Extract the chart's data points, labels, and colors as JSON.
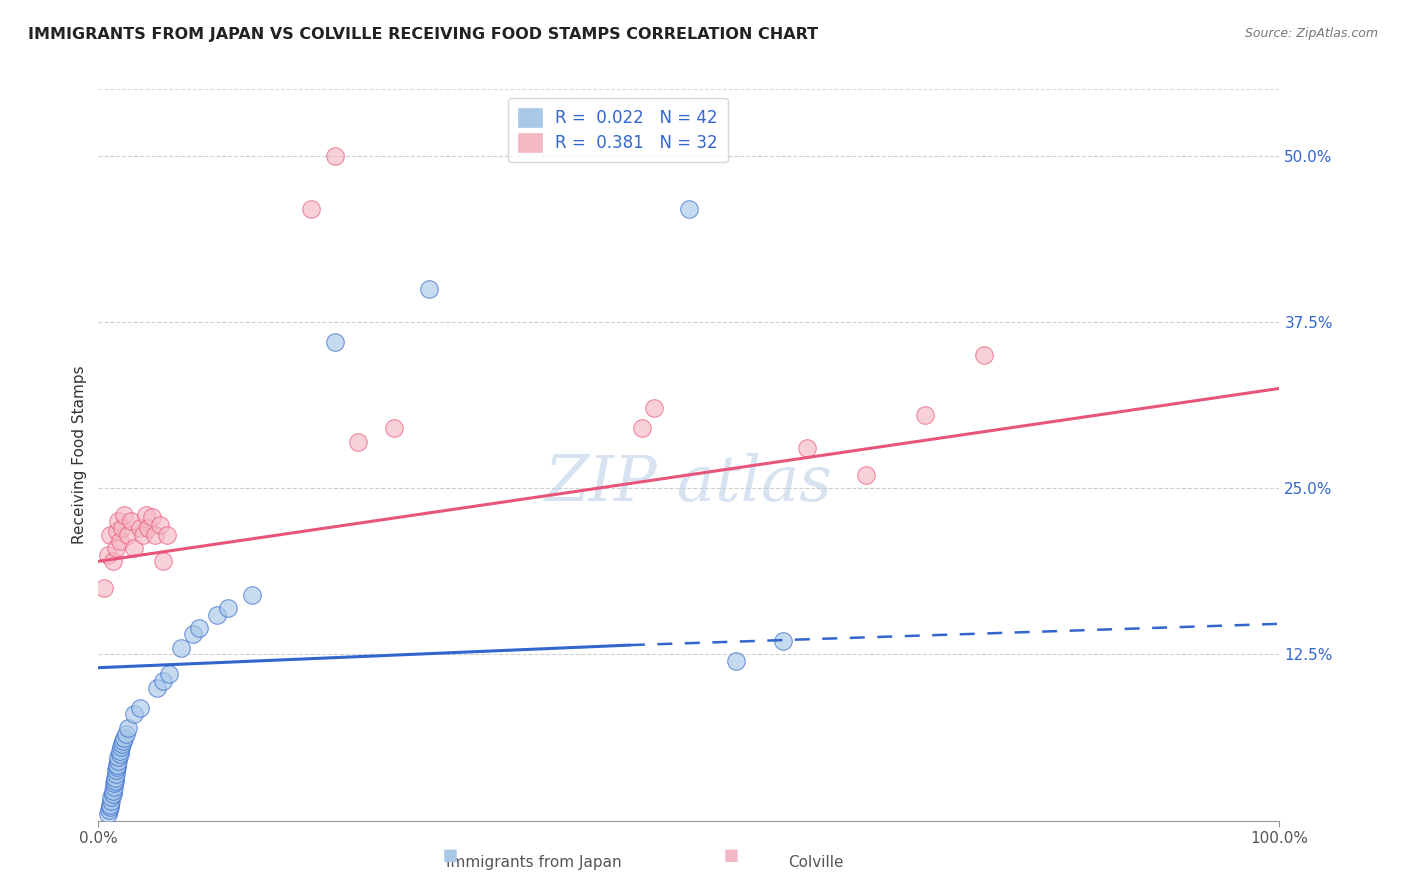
{
  "title": "IMMIGRANTS FROM JAPAN VS COLVILLE RECEIVING FOOD STAMPS CORRELATION CHART",
  "source_text": "Source: ZipAtlas.com",
  "xlabel_blue": "Immigrants from Japan",
  "xlabel_pink": "Colville",
  "ylabel": "Receiving Food Stamps",
  "xlim": [
    0,
    1.0
  ],
  "ylim": [
    0,
    0.55
  ],
  "x_tick_labels": [
    "0.0%",
    "100.0%"
  ],
  "y_ticks_right": [
    0.125,
    0.25,
    0.375,
    0.5
  ],
  "y_tick_labels_right": [
    "12.5%",
    "25.0%",
    "37.5%",
    "50.0%"
  ],
  "legend_R_blue": "R =  0.022",
  "legend_N_blue": "N = 42",
  "legend_R_pink": "R =  0.381",
  "legend_N_pink": "N = 32",
  "color_blue": "#A8C8E8",
  "color_pink": "#F4B8C4",
  "color_line_blue": "#3366CC",
  "color_line_pink": "#E8547A",
  "blue_scatter_x": [
    0.008,
    0.009,
    0.01,
    0.01,
    0.011,
    0.011,
    0.012,
    0.012,
    0.013,
    0.013,
    0.014,
    0.014,
    0.015,
    0.015,
    0.016,
    0.016,
    0.017,
    0.017,
    0.018,
    0.018,
    0.019,
    0.02,
    0.021,
    0.022,
    0.023,
    0.025,
    0.03,
    0.035,
    0.05,
    0.055,
    0.06,
    0.07,
    0.08,
    0.085,
    0.1,
    0.11,
    0.13,
    0.2,
    0.28,
    0.5,
    0.54,
    0.58
  ],
  "blue_scatter_y": [
    0.005,
    0.008,
    0.01,
    0.012,
    0.015,
    0.018,
    0.02,
    0.022,
    0.025,
    0.028,
    0.03,
    0.032,
    0.035,
    0.038,
    0.04,
    0.042,
    0.045,
    0.048,
    0.05,
    0.052,
    0.055,
    0.058,
    0.06,
    0.062,
    0.065,
    0.07,
    0.08,
    0.085,
    0.1,
    0.105,
    0.11,
    0.13,
    0.14,
    0.145,
    0.155,
    0.16,
    0.17,
    0.36,
    0.4,
    0.46,
    0.12,
    0.135
  ],
  "pink_scatter_x": [
    0.005,
    0.008,
    0.01,
    0.012,
    0.015,
    0.016,
    0.017,
    0.018,
    0.02,
    0.022,
    0.025,
    0.028,
    0.03,
    0.035,
    0.038,
    0.04,
    0.042,
    0.045,
    0.048,
    0.052,
    0.055,
    0.058,
    0.46,
    0.47,
    0.6,
    0.65,
    0.7,
    0.75,
    0.18,
    0.2,
    0.22,
    0.25
  ],
  "pink_scatter_y": [
    0.175,
    0.2,
    0.215,
    0.195,
    0.205,
    0.218,
    0.225,
    0.21,
    0.22,
    0.23,
    0.215,
    0.225,
    0.205,
    0.22,
    0.215,
    0.23,
    0.22,
    0.228,
    0.215,
    0.222,
    0.195,
    0.215,
    0.295,
    0.31,
    0.28,
    0.26,
    0.305,
    0.35,
    0.46,
    0.5,
    0.285,
    0.295
  ],
  "watermark_text": "ZIP atlas",
  "background_color": "#FFFFFF",
  "plot_bg_color": "#FFFFFF",
  "grid_color": "#BBBBBB",
  "blue_line_start_x": 0.0,
  "blue_line_end_x": 0.45,
  "blue_line_dash_start_x": 0.45,
  "blue_line_dash_end_x": 1.0,
  "blue_line_y_at_0": 0.115,
  "blue_line_y_at_045": 0.132,
  "blue_line_y_at_1": 0.148,
  "pink_line_y_at_0": 0.195,
  "pink_line_y_at_1": 0.325
}
